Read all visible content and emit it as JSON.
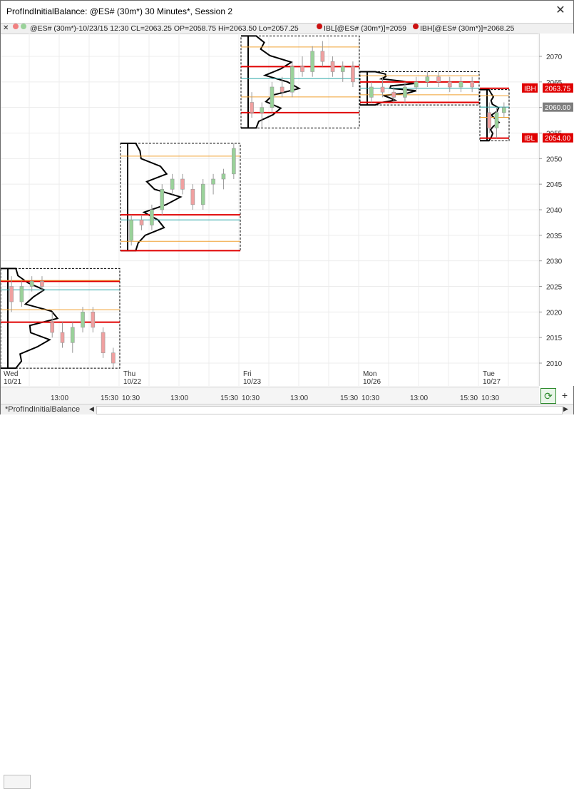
{
  "window": {
    "title": "ProfIndInitialBalance: @ES# (30m*) 30 Minutes*, Session 2",
    "close_glyph": "✕"
  },
  "infobar": {
    "symbol_info": "@ES# (30m*)-10/23/15 12:30 CL=2063.25 OP=2058.75 Hi=2063.50 Lo=2057.25",
    "ibl_info": "IBL[@ES# (30m*)]=2059",
    "ibh_info": "IBH[@ES# (30m*)]=2068.25",
    "dot_colors": [
      "#f08080",
      "#9ad29a"
    ],
    "ibl_dot_color": "#cc1111",
    "ibh_dot_color": "#cc1111"
  },
  "yaxis": {
    "ticks": [
      "2070",
      "2065",
      "2060",
      "2055",
      "2050",
      "2045",
      "2040",
      "2035",
      "2030",
      "2025",
      "2020",
      "2015",
      "2010"
    ],
    "markers": [
      {
        "label": "IBH",
        "value": "2063.75",
        "color": "#e00000"
      },
      {
        "label": "",
        "value": "2060.00",
        "color": "#7d7d7d"
      },
      {
        "label": "IBL",
        "value": "2054.00",
        "color": "#e00000"
      }
    ]
  },
  "xaxis": {
    "day_labels": [
      {
        "day": "Wed",
        "date": "10/21"
      },
      {
        "day": "Thu",
        "date": "10/22"
      },
      {
        "day": "Fri",
        "date": "10/23"
      },
      {
        "day": "Mon",
        "date": "10/26"
      },
      {
        "day": "Tue",
        "date": "10/27"
      }
    ],
    "time_labels": [
      "13:00",
      "15:30",
      "10:30",
      "13:00",
      "15:30",
      "10:30",
      "13:00",
      "15:30",
      "10:30",
      "13:00",
      "15:30",
      "10:30"
    ]
  },
  "bottom": {
    "tab_label": "*ProfIndInitialBalance",
    "nav_left": "◀",
    "nav_right": "▶",
    "refresh_glyph": "⟳",
    "plus_glyph": "+"
  },
  "chart_data": {
    "type": "candlestick-volume-profile",
    "colors": {
      "up": "#9ad29a",
      "down": "#f0a0a0",
      "ib_line": "#e00000",
      "poc_line": "#2aa6a6",
      "value_line": "#f0a030"
    },
    "sessions": [
      {
        "day": "Wed 10/21",
        "ibh": 2026,
        "ibl": 2018,
        "candles": [
          [
            2025,
            2027,
            2020,
            2022
          ],
          [
            2022,
            2026,
            2021,
            2025
          ],
          [
            2025,
            2027,
            2024,
            2026
          ],
          [
            2026,
            2027,
            2024,
            2025
          ],
          [
            2018,
            2020,
            2015,
            2016
          ],
          [
            2016,
            2018,
            2013,
            2014
          ],
          [
            2014,
            2018,
            2012,
            2017
          ],
          [
            2017,
            2021,
            2016,
            2020
          ],
          [
            2020,
            2021,
            2016,
            2017
          ],
          [
            2016,
            2017,
            2011,
            2012
          ],
          [
            2012,
            2013,
            2009,
            2010
          ]
        ]
      },
      {
        "day": "Thu 10/22",
        "ibh": 2039,
        "ibl": 2032,
        "candles": [
          [
            2034,
            2039,
            2033,
            2038
          ],
          [
            2038,
            2039,
            2036,
            2037
          ],
          [
            2037,
            2041,
            2036,
            2040
          ],
          [
            2040,
            2045,
            2039,
            2044
          ],
          [
            2044,
            2047,
            2043,
            2046
          ],
          [
            2046,
            2047,
            2043,
            2044
          ],
          [
            2044,
            2045,
            2040,
            2041
          ],
          [
            2041,
            2046,
            2040,
            2045
          ],
          [
            2045,
            2047,
            2043,
            2046
          ],
          [
            2046,
            2048,
            2044,
            2047
          ],
          [
            2047,
            2053,
            2046,
            2052
          ]
        ]
      },
      {
        "day": "Fri 10/23",
        "ibh": 2068,
        "ibl": 2059,
        "candles": [
          [
            2061,
            2063,
            2058,
            2059
          ],
          [
            2059,
            2061,
            2056,
            2060
          ],
          [
            2060,
            2065,
            2059,
            2064
          ],
          [
            2064,
            2066,
            2062,
            2063
          ],
          [
            2063,
            2069,
            2062,
            2068
          ],
          [
            2068,
            2070,
            2066,
            2067
          ],
          [
            2067,
            2072,
            2066,
            2071
          ],
          [
            2071,
            2073,
            2068,
            2069
          ],
          [
            2069,
            2070,
            2066,
            2067
          ],
          [
            2067,
            2069,
            2065,
            2068
          ],
          [
            2068,
            2069,
            2064,
            2065
          ]
        ]
      },
      {
        "day": "Mon 10/26",
        "ibh": 2065,
        "ibl": 2061,
        "candles": [
          [
            2062,
            2065,
            2061,
            2064
          ],
          [
            2064,
            2066,
            2062,
            2063
          ],
          [
            2063,
            2064,
            2061,
            2062
          ],
          [
            2062,
            2065,
            2061,
            2064
          ],
          [
            2064,
            2066,
            2063,
            2065
          ],
          [
            2065,
            2067,
            2064,
            2066
          ],
          [
            2066,
            2067,
            2064,
            2065
          ],
          [
            2065,
            2066,
            2063,
            2064
          ],
          [
            2064,
            2066,
            2063,
            2065
          ],
          [
            2065,
            2066,
            2063,
            2064
          ]
        ]
      },
      {
        "day": "Tue 10/27",
        "ibh": 2063.75,
        "ibl": 2054,
        "candles": [
          [
            2059,
            2061,
            2055,
            2056
          ],
          [
            2056,
            2060,
            2054,
            2059
          ],
          [
            2059,
            2061,
            2058,
            2060
          ]
        ]
      }
    ],
    "ylim": [
      2008,
      2076
    ]
  }
}
